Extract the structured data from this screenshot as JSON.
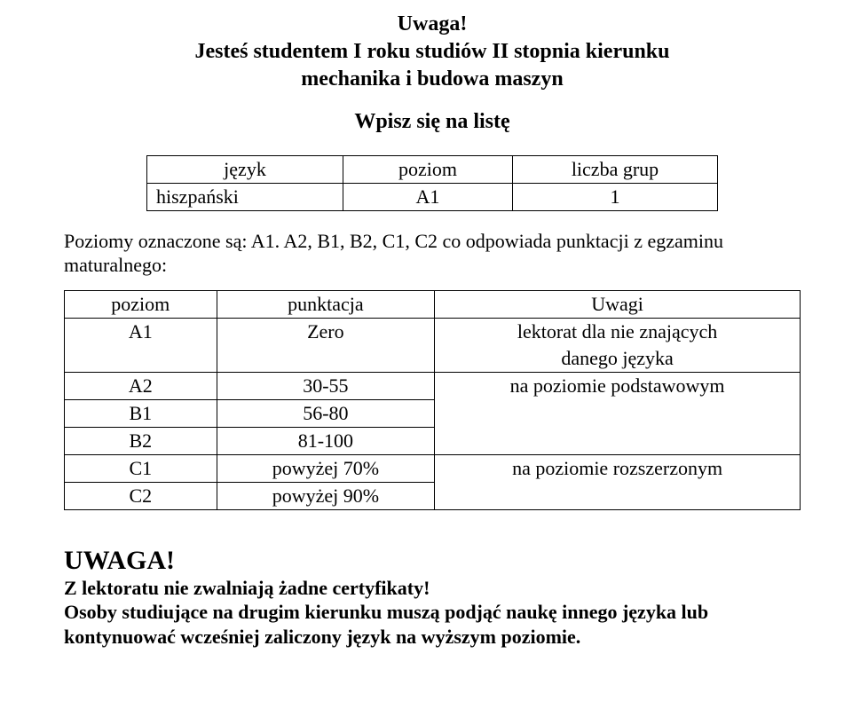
{
  "title": {
    "line1": "Uwaga!",
    "line2": "Jesteś studentem  I roku studiów II stopnia kierunku",
    "line3": "mechanika i budowa maszyn"
  },
  "subtitle": "Wpisz się na listę",
  "table1": {
    "header": {
      "c1": "język",
      "c2": "poziom",
      "c3": "liczba grup"
    },
    "row": {
      "c1": "hiszpański",
      "c2": "A1",
      "c3": "1"
    }
  },
  "para1": "Poziomy oznaczone są: A1. A2, B1, B2, C1, C2 co odpowiada punktacji z egzaminu maturalnego:",
  "table2": {
    "header": {
      "c1": "poziom",
      "c2": "punktacja",
      "c3": "Uwagi"
    },
    "rows": [
      {
        "c1": "A1",
        "c2": "Zero",
        "c3": "lektorat dla nie znających"
      },
      {
        "c1": "",
        "c2": "",
        "c3": "danego języka"
      },
      {
        "c1": "A2",
        "c2": "30-55",
        "c3": "na poziomie podstawowym"
      },
      {
        "c1": "B1",
        "c2": "56-80",
        "c3": ""
      },
      {
        "c1": "B2",
        "c2": "81-100",
        "c3": ""
      },
      {
        "c1": "C1",
        "c2": "powyżej 70%",
        "c3": "na poziomie rozszerzonym"
      },
      {
        "c1": "C2",
        "c2": "powyżej 90%",
        "c3": ""
      }
    ]
  },
  "uwaga": {
    "head": "UWAGA!",
    "line1": "Z lektoratu nie zwalniają żadne certyfikaty!",
    "line2": "Osoby studiujące na drugim kierunku muszą podjąć naukę innego języka lub kontynuować wcześniej zaliczony język na wyższym poziomie."
  },
  "style": {
    "background_color": "#ffffff",
    "text_color": "#000000",
    "border_color": "#000000",
    "font_family": "Times New Roman",
    "title_fontsize": 24,
    "body_fontsize": 22,
    "uwaga_head_fontsize": 30
  }
}
